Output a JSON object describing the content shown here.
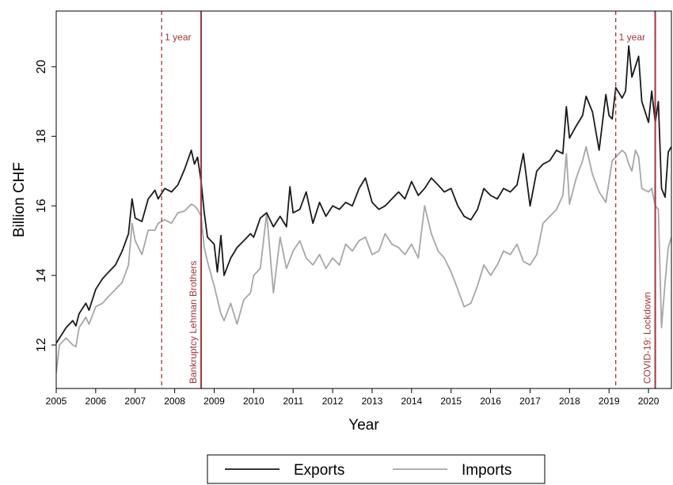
{
  "chart_data": {
    "type": "line",
    "xlabel": "Year",
    "ylabel": "Billion CHF",
    "xlim": [
      2005.0,
      2020.58
    ],
    "ylim": [
      10.75,
      21.6
    ],
    "xticks": [
      "2005",
      "2006",
      "2007",
      "2008",
      "2009",
      "2010",
      "2011",
      "2012",
      "2013",
      "2014",
      "2015",
      "2016",
      "2017",
      "2018",
      "2019",
      "2020"
    ],
    "yticks": [
      "12",
      "14",
      "16",
      "18",
      "20"
    ],
    "legend_position": "bottom-center",
    "grid": false,
    "series": [
      {
        "name": "Exports",
        "color": "#1a1a1a",
        "points": [
          [
            2005.0,
            12.05
          ],
          [
            2005.25,
            12.5
          ],
          [
            2005.42,
            12.7
          ],
          [
            2005.5,
            12.55
          ],
          [
            2005.58,
            12.9
          ],
          [
            2005.75,
            13.2
          ],
          [
            2005.83,
            13.0
          ],
          [
            2006.0,
            13.6
          ],
          [
            2006.17,
            13.9
          ],
          [
            2006.33,
            14.1
          ],
          [
            2006.5,
            14.3
          ],
          [
            2006.67,
            14.7
          ],
          [
            2006.83,
            15.2
          ],
          [
            2006.92,
            16.2
          ],
          [
            2007.0,
            15.65
          ],
          [
            2007.17,
            15.55
          ],
          [
            2007.33,
            16.2
          ],
          [
            2007.5,
            16.45
          ],
          [
            2007.58,
            16.2
          ],
          [
            2007.75,
            16.5
          ],
          [
            2007.92,
            16.4
          ],
          [
            2008.08,
            16.6
          ],
          [
            2008.25,
            17.05
          ],
          [
            2008.42,
            17.6
          ],
          [
            2008.5,
            17.2
          ],
          [
            2008.58,
            17.4
          ],
          [
            2008.67,
            16.7
          ],
          [
            2008.75,
            15.8
          ],
          [
            2008.83,
            15.1
          ],
          [
            2009.0,
            14.9
          ],
          [
            2009.08,
            14.1
          ],
          [
            2009.17,
            15.15
          ],
          [
            2009.25,
            14.0
          ],
          [
            2009.42,
            14.5
          ],
          [
            2009.58,
            14.8
          ],
          [
            2009.75,
            15.0
          ],
          [
            2009.92,
            15.2
          ],
          [
            2010.0,
            15.1
          ],
          [
            2010.17,
            15.65
          ],
          [
            2010.33,
            15.8
          ],
          [
            2010.5,
            15.4
          ],
          [
            2010.67,
            15.7
          ],
          [
            2010.83,
            15.4
          ],
          [
            2010.92,
            16.55
          ],
          [
            2011.0,
            15.8
          ],
          [
            2011.17,
            15.9
          ],
          [
            2011.33,
            16.4
          ],
          [
            2011.5,
            15.5
          ],
          [
            2011.67,
            16.1
          ],
          [
            2011.83,
            15.7
          ],
          [
            2012.0,
            16.0
          ],
          [
            2012.17,
            15.9
          ],
          [
            2012.33,
            16.1
          ],
          [
            2012.5,
            16.0
          ],
          [
            2012.67,
            16.5
          ],
          [
            2012.83,
            16.8
          ],
          [
            2013.0,
            16.1
          ],
          [
            2013.17,
            15.9
          ],
          [
            2013.33,
            16.0
          ],
          [
            2013.5,
            16.2
          ],
          [
            2013.67,
            16.4
          ],
          [
            2013.83,
            16.2
          ],
          [
            2014.0,
            16.7
          ],
          [
            2014.17,
            16.3
          ],
          [
            2014.33,
            16.5
          ],
          [
            2014.5,
            16.8
          ],
          [
            2014.67,
            16.6
          ],
          [
            2014.83,
            16.4
          ],
          [
            2015.0,
            16.5
          ],
          [
            2015.17,
            16.0
          ],
          [
            2015.33,
            15.7
          ],
          [
            2015.5,
            15.6
          ],
          [
            2015.67,
            15.9
          ],
          [
            2015.83,
            16.5
          ],
          [
            2016.0,
            16.3
          ],
          [
            2016.17,
            16.2
          ],
          [
            2016.33,
            16.5
          ],
          [
            2016.5,
            16.4
          ],
          [
            2016.67,
            16.6
          ],
          [
            2016.83,
            17.5
          ],
          [
            2017.0,
            16.0
          ],
          [
            2017.17,
            17.0
          ],
          [
            2017.33,
            17.2
          ],
          [
            2017.5,
            17.3
          ],
          [
            2017.67,
            17.6
          ],
          [
            2017.83,
            17.5
          ],
          [
            2017.92,
            18.85
          ],
          [
            2018.0,
            17.95
          ],
          [
            2018.17,
            18.3
          ],
          [
            2018.33,
            18.6
          ],
          [
            2018.42,
            19.15
          ],
          [
            2018.58,
            18.7
          ],
          [
            2018.75,
            17.6
          ],
          [
            2018.92,
            19.2
          ],
          [
            2019.0,
            18.6
          ],
          [
            2019.08,
            18.5
          ],
          [
            2019.17,
            19.4
          ],
          [
            2019.33,
            19.1
          ],
          [
            2019.42,
            19.3
          ],
          [
            2019.5,
            20.6
          ],
          [
            2019.58,
            19.7
          ],
          [
            2019.75,
            20.3
          ],
          [
            2019.83,
            19.0
          ],
          [
            2020.0,
            18.4
          ],
          [
            2020.08,
            19.3
          ],
          [
            2020.17,
            18.4
          ],
          [
            2020.25,
            19.0
          ],
          [
            2020.33,
            16.5
          ],
          [
            2020.42,
            16.25
          ],
          [
            2020.5,
            17.55
          ],
          [
            2020.58,
            17.7
          ]
        ]
      },
      {
        "name": "Imports",
        "color": "#a6a6a6",
        "points": [
          [
            2005.0,
            11.2
          ],
          [
            2005.08,
            12.0
          ],
          [
            2005.25,
            12.2
          ],
          [
            2005.42,
            12.0
          ],
          [
            2005.5,
            11.95
          ],
          [
            2005.58,
            12.5
          ],
          [
            2005.75,
            12.8
          ],
          [
            2005.83,
            12.6
          ],
          [
            2006.0,
            13.1
          ],
          [
            2006.17,
            13.2
          ],
          [
            2006.33,
            13.4
          ],
          [
            2006.5,
            13.6
          ],
          [
            2006.67,
            13.8
          ],
          [
            2006.83,
            14.3
          ],
          [
            2006.92,
            15.5
          ],
          [
            2007.0,
            15.0
          ],
          [
            2007.17,
            14.6
          ],
          [
            2007.33,
            15.3
          ],
          [
            2007.5,
            15.3
          ],
          [
            2007.58,
            15.5
          ],
          [
            2007.75,
            15.6
          ],
          [
            2007.92,
            15.5
          ],
          [
            2008.08,
            15.8
          ],
          [
            2008.25,
            15.85
          ],
          [
            2008.42,
            16.05
          ],
          [
            2008.5,
            16.0
          ],
          [
            2008.58,
            15.9
          ],
          [
            2008.67,
            15.7
          ],
          [
            2008.75,
            14.8
          ],
          [
            2008.83,
            14.4
          ],
          [
            2009.0,
            13.7
          ],
          [
            2009.17,
            12.9
          ],
          [
            2009.25,
            12.7
          ],
          [
            2009.42,
            13.2
          ],
          [
            2009.58,
            12.6
          ],
          [
            2009.75,
            13.3
          ],
          [
            2009.92,
            13.5
          ],
          [
            2010.0,
            14.0
          ],
          [
            2010.17,
            14.2
          ],
          [
            2010.33,
            15.8
          ],
          [
            2010.5,
            13.5
          ],
          [
            2010.67,
            15.1
          ],
          [
            2010.83,
            14.2
          ],
          [
            2011.0,
            14.7
          ],
          [
            2011.17,
            15.0
          ],
          [
            2011.33,
            14.5
          ],
          [
            2011.5,
            14.3
          ],
          [
            2011.67,
            14.6
          ],
          [
            2011.83,
            14.2
          ],
          [
            2012.0,
            14.5
          ],
          [
            2012.17,
            14.3
          ],
          [
            2012.33,
            14.9
          ],
          [
            2012.5,
            14.7
          ],
          [
            2012.67,
            15.0
          ],
          [
            2012.83,
            15.1
          ],
          [
            2013.0,
            14.6
          ],
          [
            2013.17,
            14.7
          ],
          [
            2013.33,
            15.2
          ],
          [
            2013.5,
            14.9
          ],
          [
            2013.67,
            14.8
          ],
          [
            2013.83,
            14.6
          ],
          [
            2014.0,
            14.9
          ],
          [
            2014.17,
            14.5
          ],
          [
            2014.33,
            16.0
          ],
          [
            2014.5,
            15.2
          ],
          [
            2014.67,
            14.7
          ],
          [
            2014.83,
            14.5
          ],
          [
            2015.0,
            14.1
          ],
          [
            2015.17,
            13.6
          ],
          [
            2015.33,
            13.1
          ],
          [
            2015.5,
            13.2
          ],
          [
            2015.67,
            13.7
          ],
          [
            2015.83,
            14.3
          ],
          [
            2016.0,
            14.0
          ],
          [
            2016.17,
            14.3
          ],
          [
            2016.33,
            14.7
          ],
          [
            2016.5,
            14.6
          ],
          [
            2016.67,
            14.9
          ],
          [
            2016.83,
            14.4
          ],
          [
            2017.0,
            14.3
          ],
          [
            2017.17,
            14.6
          ],
          [
            2017.33,
            15.5
          ],
          [
            2017.5,
            15.7
          ],
          [
            2017.67,
            15.9
          ],
          [
            2017.83,
            16.3
          ],
          [
            2017.92,
            17.5
          ],
          [
            2018.0,
            16.05
          ],
          [
            2018.17,
            16.8
          ],
          [
            2018.33,
            17.3
          ],
          [
            2018.42,
            17.7
          ],
          [
            2018.58,
            16.9
          ],
          [
            2018.75,
            16.4
          ],
          [
            2018.92,
            16.1
          ],
          [
            2019.0,
            16.7
          ],
          [
            2019.08,
            17.3
          ],
          [
            2019.17,
            17.4
          ],
          [
            2019.33,
            17.6
          ],
          [
            2019.42,
            17.5
          ],
          [
            2019.5,
            17.2
          ],
          [
            2019.58,
            17.0
          ],
          [
            2019.67,
            17.6
          ],
          [
            2019.75,
            17.4
          ],
          [
            2019.83,
            16.5
          ],
          [
            2020.0,
            16.4
          ],
          [
            2020.08,
            16.5
          ],
          [
            2020.17,
            16.0
          ],
          [
            2020.25,
            15.9
          ],
          [
            2020.33,
            12.5
          ],
          [
            2020.42,
            13.8
          ],
          [
            2020.5,
            14.8
          ],
          [
            2020.58,
            15.1
          ]
        ]
      }
    ],
    "events": [
      {
        "x": 2007.67,
        "style": "dashed",
        "label": "1 year",
        "label_pos": "top"
      },
      {
        "x": 2008.67,
        "style": "solid",
        "label": "Bankruptcy Lehman Brothers",
        "label_pos": "bottom-rotated"
      },
      {
        "x": 2019.17,
        "style": "dashed",
        "label": "1 year",
        "label_pos": "top"
      },
      {
        "x": 2020.17,
        "style": "solid",
        "label": "COVID-19: Lockdown",
        "label_pos": "bottom-rotated"
      }
    ],
    "event_color": "#a0363a"
  }
}
